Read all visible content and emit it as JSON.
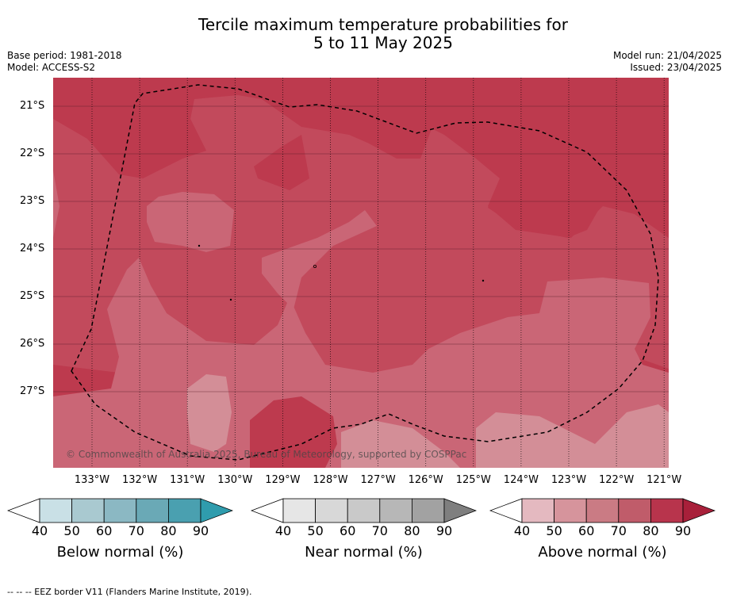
{
  "title_line1": "Tercile maximum temperature probabilities for",
  "title_line2": "5 to 11 May 2025",
  "meta_left": [
    "Base period: 1981-2018",
    "Model: ACCESS-S2"
  ],
  "meta_right": [
    "Model run: 21/04/2025",
    "Issued: 23/04/2025"
  ],
  "lat_labels": [
    "21°S",
    "22°S",
    "23°S",
    "24°S",
    "25°S",
    "26°S",
    "27°S"
  ],
  "lon_labels": [
    "133°W",
    "132°W",
    "131°W",
    "130°W",
    "129°W",
    "128°W",
    "127°W",
    "126°W",
    "125°W",
    "124°W",
    "123°W",
    "122°W",
    "121°W"
  ],
  "copyright": "© Commonwealth of Australia 2025, Bureau of Meteorology, supported by COSPPac",
  "colorbars": [
    {
      "label": "Below normal (%)",
      "colors": [
        "#ffffff",
        "#c9e0e6",
        "#a9c9d0",
        "#8bb8c3",
        "#6aa9b6",
        "#4aa0b0",
        "#2f9cad"
      ],
      "ticks": [
        "40",
        "50",
        "60",
        "70",
        "80",
        "90"
      ]
    },
    {
      "label": "Near normal (%)",
      "colors": [
        "#ffffff",
        "#e6e6e6",
        "#d8d8d8",
        "#c9c9c9",
        "#b7b7b7",
        "#a2a2a2",
        "#7f7f7f"
      ],
      "ticks": [
        "40",
        "50",
        "60",
        "70",
        "80",
        "90"
      ]
    },
    {
      "label": "Above normal (%)",
      "colors": [
        "#ffffff",
        "#e4b9c0",
        "#d6949c",
        "#ca7b84",
        "#c05c6a",
        "#b8344c",
        "#a8203a"
      ],
      "ticks": [
        "40",
        "50",
        "60",
        "70",
        "80",
        "90"
      ]
    }
  ],
  "map_colors": {
    "c90": "#bd3a4e",
    "c80": "#c24a5c",
    "c70": "#ca6676",
    "c60": "#d38e97",
    "border": "#000000"
  },
  "footer": "--  --  -- EEZ border V11 (Flanders Marine Institute, 2019)."
}
